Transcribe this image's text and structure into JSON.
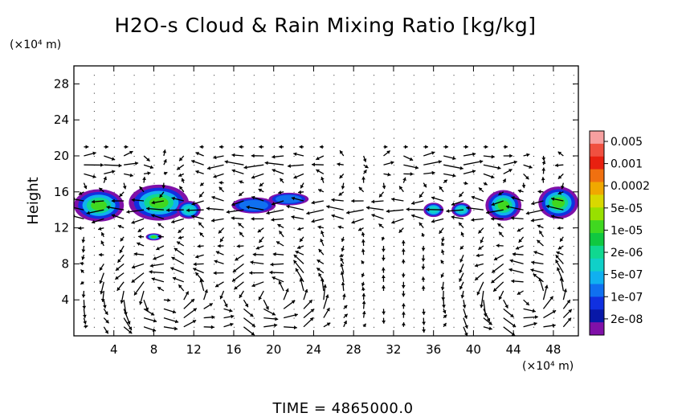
{
  "chart_data": {
    "type": "heatmap",
    "title": "H2O-s Cloud & Rain Mixing Ratio [kg/kg]",
    "ylabel": "Height",
    "y_unit": "(×10⁴ m)",
    "x_unit": "(×10⁴ m)",
    "xlim": [
      0,
      50.5
    ],
    "ylim": [
      0,
      30
    ],
    "x_ticks": [
      4,
      8,
      12,
      16,
      20,
      24,
      28,
      32,
      36,
      40,
      44,
      48
    ],
    "y_ticks": [
      4,
      8,
      12,
      16,
      20,
      24,
      28
    ],
    "colorbar": {
      "labels": [
        "0.005",
        "0.001",
        "0.0002",
        "5e-05",
        "1e-05",
        "2e-06",
        "5e-07",
        "1e-07",
        "2e-08"
      ],
      "colors": [
        "#f7a0a0",
        "#f05040",
        "#e82010",
        "#f07010",
        "#f0a800",
        "#d8d800",
        "#98e000",
        "#40d820",
        "#10c840",
        "#10d890",
        "#10d0c8",
        "#10b0f0",
        "#1070f0",
        "#1030e0",
        "#0818a8",
        "#8010a8"
      ]
    },
    "time_label": "TIME  =  4865000.0",
    "cloud_cells": [
      {
        "x": 2.5,
        "y": 14.5,
        "rx": 2.5,
        "ry": 1.8,
        "core": "green"
      },
      {
        "x": 8.5,
        "y": 14.8,
        "rx": 3.0,
        "ry": 2.0,
        "core": "green"
      },
      {
        "x": 11.5,
        "y": 14.0,
        "rx": 1.2,
        "ry": 1.0,
        "core": "cyan"
      },
      {
        "x": 18.0,
        "y": 14.5,
        "rx": 2.2,
        "ry": 0.9,
        "core": "blue"
      },
      {
        "x": 21.5,
        "y": 15.2,
        "rx": 2.0,
        "ry": 0.7,
        "core": "blue"
      },
      {
        "x": 36.0,
        "y": 14.0,
        "rx": 1.0,
        "ry": 0.8,
        "core": "cyan"
      },
      {
        "x": 38.8,
        "y": 14.0,
        "rx": 1.0,
        "ry": 0.8,
        "core": "cyan"
      },
      {
        "x": 43.0,
        "y": 14.5,
        "rx": 1.8,
        "ry": 1.7,
        "core": "green"
      },
      {
        "x": 48.5,
        "y": 14.8,
        "rx": 2.0,
        "ry": 1.8,
        "core": "green"
      },
      {
        "x": 8.0,
        "y": 11.0,
        "rx": 0.8,
        "ry": 0.4,
        "core": "green"
      }
    ],
    "wind_field": "vector arrows: upper-level outflow near y=19, easterly layer near y=14, low-level circulation cells centered near x=9, x=20, x=45 (y≈4)"
  }
}
